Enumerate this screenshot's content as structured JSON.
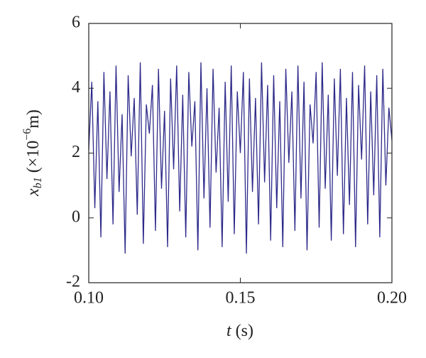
{
  "chart_data": {
    "type": "line",
    "xlabel": [
      "t",
      " (s)"
    ],
    "ylabel": [
      "x",
      "b1",
      " (×10",
      "−6",
      "m)"
    ],
    "x": [
      0.1,
      0.101,
      0.102,
      0.103,
      0.104,
      0.105,
      0.106,
      0.107,
      0.108,
      0.109,
      0.11,
      0.111,
      0.112,
      0.113,
      0.114,
      0.115,
      0.116,
      0.117,
      0.118,
      0.119,
      0.12,
      0.121,
      0.122,
      0.123,
      0.124,
      0.125,
      0.126,
      0.127,
      0.128,
      0.129,
      0.13,
      0.131,
      0.132,
      0.133,
      0.134,
      0.135,
      0.136,
      0.137,
      0.138,
      0.139,
      0.14,
      0.141,
      0.142,
      0.143,
      0.144,
      0.145,
      0.146,
      0.147,
      0.148,
      0.149,
      0.15,
      0.151,
      0.152,
      0.153,
      0.154,
      0.155,
      0.156,
      0.157,
      0.158,
      0.159,
      0.16,
      0.161,
      0.162,
      0.163,
      0.164,
      0.165,
      0.166,
      0.167,
      0.168,
      0.169,
      0.17,
      0.171,
      0.172,
      0.173,
      0.174,
      0.175,
      0.176,
      0.177,
      0.178,
      0.179,
      0.18,
      0.181,
      0.182,
      0.183,
      0.184,
      0.185,
      0.186,
      0.187,
      0.188,
      0.189,
      0.19,
      0.191,
      0.192,
      0.193,
      0.194,
      0.195,
      0.196,
      0.197,
      0.198,
      0.199,
      0.2
    ],
    "series": [
      {
        "name": "xb1",
        "color": "#2e2a8a",
        "values": [
          2.1,
          4.2,
          0.3,
          3.6,
          -0.6,
          4.5,
          1.2,
          3.9,
          -0.2,
          4.7,
          0.8,
          3.2,
          -1.1,
          4.4,
          1.9,
          3.7,
          0.1,
          4.8,
          -0.8,
          3.5,
          2.6,
          4.1,
          -0.4,
          4.6,
          0.9,
          3.3,
          -0.9,
          4.3,
          1.5,
          4.7,
          0.2,
          3.8,
          -0.6,
          4.5,
          2.2,
          3.6,
          -1.0,
          4.8,
          0.6,
          4.0,
          -0.3,
          4.6,
          1.4,
          3.4,
          -0.9,
          4.2,
          0.5,
          4.7,
          -0.5,
          3.9,
          2.0,
          4.5,
          -1.1,
          4.3,
          0.8,
          3.7,
          -0.2,
          4.8,
          1.1,
          4.1,
          -0.7,
          4.4,
          0.3,
          3.6,
          -0.9,
          4.6,
          1.7,
          3.9,
          -0.4,
          4.7,
          0.6,
          4.2,
          -1.0,
          3.5,
          2.3,
          4.5,
          -0.3,
          4.8,
          0.9,
          3.8,
          -0.7,
          4.3,
          1.3,
          4.6,
          -0.5,
          3.7,
          0.4,
          4.5,
          -0.9,
          4.1,
          1.8,
          4.7,
          -0.2,
          3.9,
          0.7,
          4.4,
          -0.6,
          4.6,
          1.0,
          3.4,
          2.4
        ]
      }
    ],
    "xlim": [
      0.1,
      0.2
    ],
    "xticks": [
      {
        "value": 0.1,
        "label": "0.10"
      },
      {
        "value": 0.15,
        "label": "0.15"
      },
      {
        "value": 0.2,
        "label": "0.20"
      }
    ],
    "ylim": [
      -2,
      6
    ],
    "yticks": [
      -2,
      0,
      2,
      4,
      6
    ]
  }
}
